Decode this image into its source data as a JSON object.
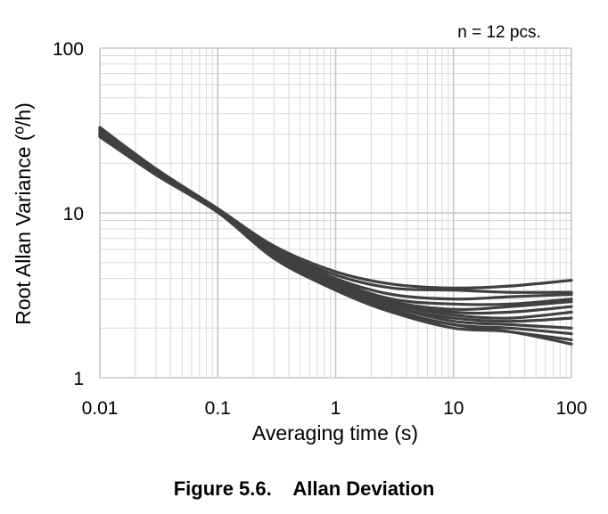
{
  "figure": {
    "caption": "Figure 5.6.    Allan Deviation"
  },
  "chart_data": {
    "type": "line",
    "xscale": "log",
    "yscale": "log",
    "xlim": [
      0.01,
      100
    ],
    "ylim": [
      1,
      100
    ],
    "xlabel": "Averaging time (s)",
    "ylabel": "Root Allan Variance (º/h)",
    "xticks": [
      "0.01",
      "0.1",
      "1",
      "10",
      "100"
    ],
    "yticks": [
      "1",
      "10",
      "100"
    ],
    "annotation": "n = 12 pcs.",
    "grid": true,
    "line_color": "#404040",
    "grid_color": "#d9d9d9",
    "series": [
      {
        "x": [
          0.01,
          0.03,
          0.1,
          0.3,
          1,
          3,
          10,
          30,
          100
        ],
        "y": [
          33,
          18.5,
          10.6,
          6.3,
          4.4,
          3.7,
          3.5,
          3.6,
          3.9
        ]
      },
      {
        "x": [
          0.01,
          0.03,
          0.1,
          0.3,
          1,
          3,
          10,
          30,
          100
        ],
        "y": [
          32.5,
          18.3,
          10.6,
          6.1,
          4.2,
          3.5,
          3.4,
          3.3,
          3.3
        ]
      },
      {
        "x": [
          0.01,
          0.03,
          0.1,
          0.3,
          1,
          3,
          10,
          30,
          100
        ],
        "y": [
          32,
          18.1,
          10.5,
          6.0,
          4.0,
          3.2,
          3.0,
          3.1,
          3.2
        ]
      },
      {
        "x": [
          0.01,
          0.03,
          0.1,
          0.3,
          1,
          3,
          10,
          30,
          100
        ],
        "y": [
          31.5,
          18.0,
          10.5,
          5.9,
          3.9,
          3.0,
          2.8,
          2.8,
          3.0
        ]
      },
      {
        "x": [
          0.01,
          0.03,
          0.1,
          0.3,
          1,
          3,
          10,
          30,
          100
        ],
        "y": [
          31,
          17.8,
          10.4,
          5.8,
          3.8,
          2.9,
          2.6,
          2.7,
          2.9
        ]
      },
      {
        "x": [
          0.01,
          0.03,
          0.1,
          0.3,
          1,
          3,
          10,
          30,
          100
        ],
        "y": [
          30.5,
          17.6,
          10.4,
          5.7,
          3.7,
          2.9,
          2.5,
          2.5,
          2.7
        ]
      },
      {
        "x": [
          0.01,
          0.03,
          0.1,
          0.3,
          1,
          3,
          10,
          30,
          100
        ],
        "y": [
          30.5,
          17.5,
          10.3,
          5.6,
          3.6,
          2.8,
          2.4,
          2.3,
          2.5
        ]
      },
      {
        "x": [
          0.01,
          0.03,
          0.1,
          0.3,
          1,
          3,
          10,
          30,
          100
        ],
        "y": [
          30,
          17.4,
          10.3,
          5.5,
          3.6,
          2.7,
          2.3,
          2.2,
          2.3
        ]
      },
      {
        "x": [
          0.01,
          0.03,
          0.1,
          0.3,
          1,
          3,
          10,
          30,
          100
        ],
        "y": [
          30,
          17.3,
          10.2,
          5.5,
          3.5,
          2.7,
          2.2,
          2.1,
          2.0
        ]
      },
      {
        "x": [
          0.01,
          0.03,
          0.1,
          0.3,
          1,
          3,
          10,
          30,
          100
        ],
        "y": [
          29.5,
          17.2,
          10.2,
          5.4,
          3.5,
          2.6,
          2.1,
          2.0,
          1.85
        ]
      },
      {
        "x": [
          0.01,
          0.03,
          0.1,
          0.3,
          1,
          3,
          10,
          30,
          100
        ],
        "y": [
          29.5,
          17.1,
          10.1,
          5.4,
          3.4,
          2.5,
          2.1,
          1.9,
          1.7
        ]
      },
      {
        "x": [
          0.01,
          0.03,
          0.1,
          0.3,
          1,
          3,
          10,
          30,
          100
        ],
        "y": [
          29,
          17.0,
          10.1,
          5.3,
          3.4,
          2.5,
          2.0,
          1.9,
          1.6
        ]
      }
    ]
  }
}
